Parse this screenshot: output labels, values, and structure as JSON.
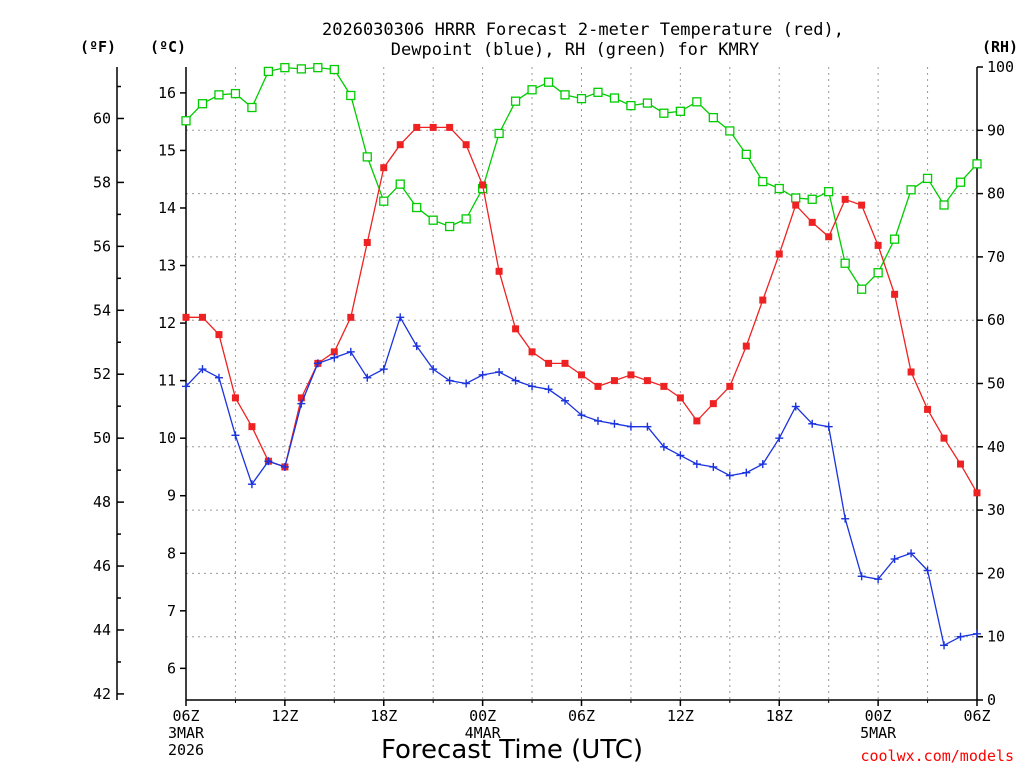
{
  "chart_data": {
    "type": "line",
    "title_lines": [
      "2026030306 HRRR Forecast 2-meter Temperature (red),",
      "Dewpoint (blue), RH (green) for KMRY"
    ],
    "unit_labels": {
      "fahrenheit": "(ºF)",
      "celsius": "(ºC)",
      "rh": "(RH)"
    },
    "xlabel": "Forecast Time (UTC)",
    "credit": "coolwx.com/models",
    "colors": {
      "temperature": "#ee2222",
      "dewpoint": "#1a33dd",
      "rh": "#00cc00",
      "credit": "#ff0000"
    },
    "x_range_hours": [
      0,
      48
    ],
    "x_ticks": [
      {
        "hour": 0,
        "label": "06Z",
        "sub": [
          "3MAR",
          "2026"
        ]
      },
      {
        "hour": 6,
        "label": "12Z",
        "sub": []
      },
      {
        "hour": 12,
        "label": "18Z",
        "sub": []
      },
      {
        "hour": 18,
        "label": "00Z",
        "sub": [
          "4MAR"
        ]
      },
      {
        "hour": 24,
        "label": "06Z",
        "sub": []
      },
      {
        "hour": 30,
        "label": "12Z",
        "sub": []
      },
      {
        "hour": 36,
        "label": "18Z",
        "sub": []
      },
      {
        "hour": 42,
        "label": "00Z",
        "sub": [
          "5MAR"
        ]
      },
      {
        "hour": 48,
        "label": "06Z",
        "sub": []
      }
    ],
    "celsius_ticks": [
      6,
      7,
      8,
      9,
      10,
      11,
      12,
      13,
      14,
      15,
      16
    ],
    "fahrenheit_ticks": [
      42,
      44,
      46,
      48,
      50,
      52,
      54,
      56,
      58,
      60
    ],
    "rh_ticks": [
      0,
      10,
      20,
      30,
      40,
      50,
      60,
      70,
      80,
      90,
      100
    ],
    "celsius_range": [
      5.45,
      16.45
    ],
    "rh_range": [
      0,
      100
    ],
    "series": [
      {
        "name": "Temperature",
        "unit": "C",
        "marker": "filled-square",
        "values": [
          12.1,
          12.1,
          11.8,
          10.7,
          10.2,
          9.6,
          9.5,
          10.7,
          11.3,
          11.5,
          12.1,
          13.4,
          14.7,
          15.1,
          15.4,
          15.4,
          15.4,
          15.1,
          14.4,
          12.9,
          11.9,
          11.5,
          11.3,
          11.3,
          11.1,
          10.9,
          11.0,
          11.1,
          11.0,
          10.9,
          10.7,
          10.3,
          10.6,
          10.9,
          11.6,
          12.4,
          13.2,
          14.05,
          13.75,
          13.5,
          14.15,
          14.05,
          13.35,
          12.5,
          11.15,
          10.5,
          10.0,
          9.55,
          9.05
        ]
      },
      {
        "name": "Dewpoint",
        "unit": "C",
        "marker": "plus",
        "values": [
          10.9,
          11.2,
          11.05,
          10.05,
          9.2,
          9.6,
          9.5,
          10.6,
          11.3,
          11.4,
          11.5,
          11.05,
          11.2,
          12.1,
          11.6,
          11.2,
          11.0,
          10.95,
          11.1,
          11.15,
          11.0,
          10.9,
          10.85,
          10.65,
          10.4,
          10.3,
          10.25,
          10.2,
          10.2,
          9.85,
          9.7,
          9.55,
          9.5,
          9.35,
          9.4,
          9.55,
          10.0,
          10.55,
          10.25,
          10.2,
          8.6,
          7.6,
          7.55,
          7.9,
          8.0,
          7.7,
          6.4,
          6.55,
          6.6
        ]
      },
      {
        "name": "Relative Humidity",
        "unit": "%",
        "marker": "open-square",
        "values": [
          91.5,
          94.2,
          95.6,
          95.8,
          93.6,
          99.3,
          99.9,
          99.7,
          99.9,
          99.6,
          95.5,
          85.8,
          78.8,
          81.5,
          77.8,
          75.8,
          74.8,
          76.0,
          80.8,
          89.5,
          94.6,
          96.4,
          97.6,
          95.6,
          95.0,
          96.0,
          95.1,
          93.9,
          94.3,
          92.7,
          93.0,
          94.5,
          92.0,
          89.9,
          86.2,
          81.9,
          80.8,
          79.3,
          79.1,
          80.3,
          69.0,
          64.9,
          67.5,
          72.8,
          80.6,
          82.4,
          78.2,
          81.8,
          84.7
        ]
      }
    ]
  }
}
